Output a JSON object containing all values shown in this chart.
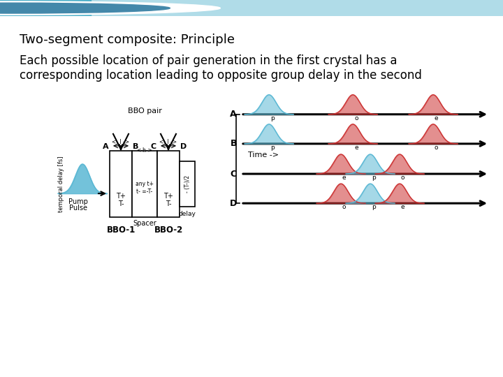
{
  "title": "Two-segment composite: Principle",
  "subtitle_line1": "Each possible location of pair generation in the first crystal has a",
  "subtitle_line2": "corresponding location leading to opposite group delay in the second",
  "title_fontsize": 13,
  "subtitle_fontsize": 12,
  "bg_color": "#ffffff",
  "header_bar_color": "#5bb8d4",
  "pump_color": "#5bb8d4",
  "red_color": "#cc3333",
  "cyan_color": "#5bb8d4"
}
